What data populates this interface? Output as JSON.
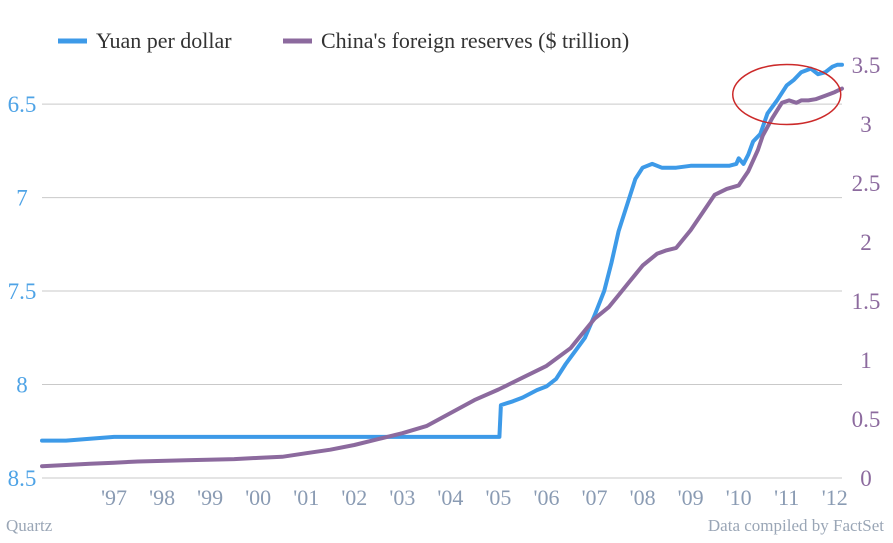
{
  "colors": {
    "yuan": "#3d9ae8",
    "reserves": "#8c6a9e",
    "highlight": "#cc2a2a"
  },
  "footer": {
    "source_left": "Quartz",
    "source_right": "Data compiled by FactSet"
  },
  "chart_data": {
    "type": "line",
    "title": "",
    "xlabel": "",
    "x_ticks": [
      "'97",
      "'98",
      "'99",
      "'00",
      "'01",
      "'02",
      "'03",
      "'04",
      "'05",
      "'06",
      "'07",
      "'08",
      "'09",
      "'10",
      "'11",
      "'12"
    ],
    "x_range": [
      1996.0,
      2012.65
    ],
    "legend_position": "top-left",
    "grid": true,
    "y_left": {
      "label": "",
      "inverted": true,
      "range": [
        6.2,
        8.5
      ],
      "ticks": [
        "6.5",
        "7",
        "7.5",
        "8",
        "8.5"
      ]
    },
    "y_right": {
      "label": "",
      "range": [
        0,
        3.5
      ],
      "ticks": [
        "0",
        "0.5",
        "1",
        "1.5",
        "2",
        "2.5",
        "3",
        "3.5"
      ]
    },
    "annotation": {
      "type": "ellipse",
      "center": [
        2011.5,
        3.25
      ],
      "note": ""
    },
    "series": [
      {
        "name": "Yuan per dollar",
        "axis": "left",
        "points": [
          [
            1996.0,
            8.3
          ],
          [
            1996.5,
            8.3
          ],
          [
            1997.0,
            8.29
          ],
          [
            1997.5,
            8.28
          ],
          [
            1998.0,
            8.28
          ],
          [
            1999.0,
            8.28
          ],
          [
            2000.0,
            8.28
          ],
          [
            2001.0,
            8.28
          ],
          [
            2002.0,
            8.28
          ],
          [
            2003.0,
            8.28
          ],
          [
            2004.0,
            8.28
          ],
          [
            2005.0,
            8.28
          ],
          [
            2005.52,
            8.28
          ],
          [
            2005.55,
            8.11
          ],
          [
            2005.8,
            8.09
          ],
          [
            2006.0,
            8.07
          ],
          [
            2006.3,
            8.03
          ],
          [
            2006.5,
            8.01
          ],
          [
            2006.7,
            7.97
          ],
          [
            2006.9,
            7.89
          ],
          [
            2007.1,
            7.82
          ],
          [
            2007.3,
            7.75
          ],
          [
            2007.5,
            7.63
          ],
          [
            2007.7,
            7.5
          ],
          [
            2007.85,
            7.35
          ],
          [
            2008.0,
            7.18
          ],
          [
            2008.2,
            7.02
          ],
          [
            2008.35,
            6.9
          ],
          [
            2008.5,
            6.84
          ],
          [
            2008.7,
            6.82
          ],
          [
            2008.9,
            6.84
          ],
          [
            2009.2,
            6.84
          ],
          [
            2009.5,
            6.83
          ],
          [
            2009.8,
            6.83
          ],
          [
            2010.0,
            6.83
          ],
          [
            2010.3,
            6.83
          ],
          [
            2010.45,
            6.82
          ],
          [
            2010.5,
            6.79
          ],
          [
            2010.6,
            6.82
          ],
          [
            2010.7,
            6.77
          ],
          [
            2010.8,
            6.7
          ],
          [
            2010.95,
            6.66
          ],
          [
            2011.1,
            6.55
          ],
          [
            2011.3,
            6.48
          ],
          [
            2011.5,
            6.4
          ],
          [
            2011.65,
            6.37
          ],
          [
            2011.8,
            6.33
          ],
          [
            2012.0,
            6.31
          ],
          [
            2012.15,
            6.34
          ],
          [
            2012.3,
            6.33
          ],
          [
            2012.45,
            6.3
          ],
          [
            2012.55,
            6.29
          ],
          [
            2012.65,
            6.29
          ]
        ]
      },
      {
        "name": "China's foreign reserves ($ trillion)",
        "axis": "right",
        "points": [
          [
            1996.0,
            0.1
          ],
          [
            1996.5,
            0.11
          ],
          [
            1997.0,
            0.12
          ],
          [
            1997.5,
            0.13
          ],
          [
            1998.0,
            0.14
          ],
          [
            1999.0,
            0.15
          ],
          [
            2000.0,
            0.16
          ],
          [
            2000.5,
            0.17
          ],
          [
            2001.0,
            0.18
          ],
          [
            2001.5,
            0.21
          ],
          [
            2002.0,
            0.24
          ],
          [
            2002.5,
            0.28
          ],
          [
            2003.0,
            0.33
          ],
          [
            2003.5,
            0.38
          ],
          [
            2004.0,
            0.44
          ],
          [
            2004.5,
            0.55
          ],
          [
            2005.0,
            0.66
          ],
          [
            2005.5,
            0.75
          ],
          [
            2006.0,
            0.85
          ],
          [
            2006.5,
            0.95
          ],
          [
            2007.0,
            1.1
          ],
          [
            2007.3,
            1.25
          ],
          [
            2007.5,
            1.35
          ],
          [
            2007.8,
            1.45
          ],
          [
            2008.0,
            1.55
          ],
          [
            2008.2,
            1.65
          ],
          [
            2008.5,
            1.8
          ],
          [
            2008.8,
            1.9
          ],
          [
            2009.0,
            1.93
          ],
          [
            2009.2,
            1.95
          ],
          [
            2009.5,
            2.1
          ],
          [
            2009.75,
            2.25
          ],
          [
            2010.0,
            2.4
          ],
          [
            2010.25,
            2.45
          ],
          [
            2010.5,
            2.48
          ],
          [
            2010.7,
            2.6
          ],
          [
            2010.9,
            2.78
          ],
          [
            2011.0,
            2.9
          ],
          [
            2011.2,
            3.05
          ],
          [
            2011.4,
            3.18
          ],
          [
            2011.55,
            3.2
          ],
          [
            2011.7,
            3.18
          ],
          [
            2011.8,
            3.2
          ],
          [
            2011.95,
            3.2
          ],
          [
            2012.1,
            3.21
          ],
          [
            2012.3,
            3.24
          ],
          [
            2012.5,
            3.27
          ],
          [
            2012.65,
            3.3
          ]
        ]
      }
    ]
  }
}
